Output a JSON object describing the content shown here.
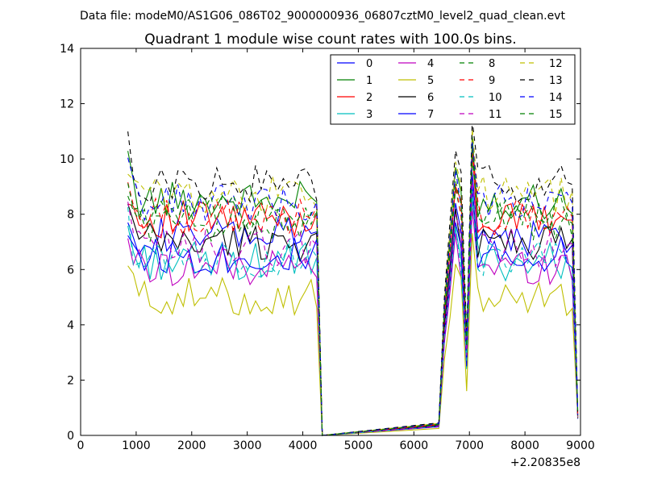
{
  "chart_data": {
    "type": "line",
    "suptitle": "Data file: modeM0/AS1G06_086T02_9000000936_06807cztM0_level2_quad_clean.evt",
    "title": "Quadrant 1 module wise count rates with 100.0s bins.",
    "xlabel": "",
    "ylabel": "",
    "offset_label": "+2.20835e8",
    "xlim": [
      0,
      9000
    ],
    "ylim": [
      0,
      14
    ],
    "xticks": [
      0,
      1000,
      2000,
      3000,
      4000,
      5000,
      6000,
      7000,
      8000,
      9000
    ],
    "yticks": [
      0,
      2,
      4,
      6,
      8,
      10,
      12,
      14
    ],
    "legend_position": "top-right",
    "x": [
      850,
      950,
      1050,
      1150,
      1250,
      1350,
      1450,
      1550,
      1650,
      1750,
      1850,
      1950,
      2050,
      2150,
      2250,
      2350,
      2450,
      2550,
      2650,
      2750,
      2850,
      2950,
      3050,
      3150,
      3250,
      3350,
      3450,
      3550,
      3650,
      3750,
      3850,
      3950,
      4050,
      4150,
      4250,
      4350,
      6450,
      6550,
      6650,
      6750,
      6850,
      6950,
      7050,
      7150,
      7250,
      7350,
      7450,
      7550,
      7650,
      7750,
      7850,
      7950,
      8050,
      8150,
      8250,
      8350,
      8450,
      8550,
      8650,
      8750,
      8850,
      8950
    ],
    "series": [
      {
        "name": "0",
        "color": "#0000ff",
        "dash": "solid",
        "base": 7.2,
        "dip": 3.0
      },
      {
        "name": "1",
        "color": "#008000",
        "dash": "solid",
        "base": 8.5,
        "dip": 3.4
      },
      {
        "name": "2",
        "color": "#ff0000",
        "dash": "solid",
        "base": 7.8,
        "dip": 3.2
      },
      {
        "name": "3",
        "color": "#00bfbf",
        "dash": "solid",
        "base": 6.3,
        "dip": 2.4
      },
      {
        "name": "4",
        "color": "#bf00bf",
        "dash": "solid",
        "base": 6.1,
        "dip": 2.6
      },
      {
        "name": "5",
        "color": "#bfbf00",
        "dash": "solid",
        "base": 5.0,
        "dip": 1.6
      },
      {
        "name": "6",
        "color": "#000000",
        "dash": "solid",
        "base": 7.0,
        "dip": 2.8
      },
      {
        "name": "7",
        "color": "#0000ff",
        "dash": "solid",
        "base": 6.5,
        "dip": 2.5
      },
      {
        "name": "8",
        "color": "#008000",
        "dash": "dashed",
        "base": 7.7,
        "dip": 3.1
      },
      {
        "name": "9",
        "color": "#ff0000",
        "dash": "dashed",
        "base": 7.9,
        "dip": 3.3
      },
      {
        "name": "10",
        "color": "#00bfbf",
        "dash": "dashed",
        "base": 6.4,
        "dip": 2.7
      },
      {
        "name": "11",
        "color": "#bf00bf",
        "dash": "dashed",
        "base": 6.8,
        "dip": 2.9
      },
      {
        "name": "12",
        "color": "#bfbf00",
        "dash": "dashed",
        "base": 8.7,
        "dip": 3.5
      },
      {
        "name": "13",
        "color": "#000000",
        "dash": "dashed",
        "base": 9.1,
        "dip": 3.6
      },
      {
        "name": "14",
        "color": "#0000ff",
        "dash": "dashed",
        "base": 8.4,
        "dip": 3.3
      },
      {
        "name": "15",
        "color": "#008000",
        "dash": "dashed",
        "base": 8.0,
        "dip": 3.2
      }
    ],
    "notes": "Per-series values in the 800-4300 and 6450-8950 ranges fluctuate around 'base'; rate drops to ~0 between ~4350 and ~6450 and dips near x=7000 to 'dip'."
  }
}
